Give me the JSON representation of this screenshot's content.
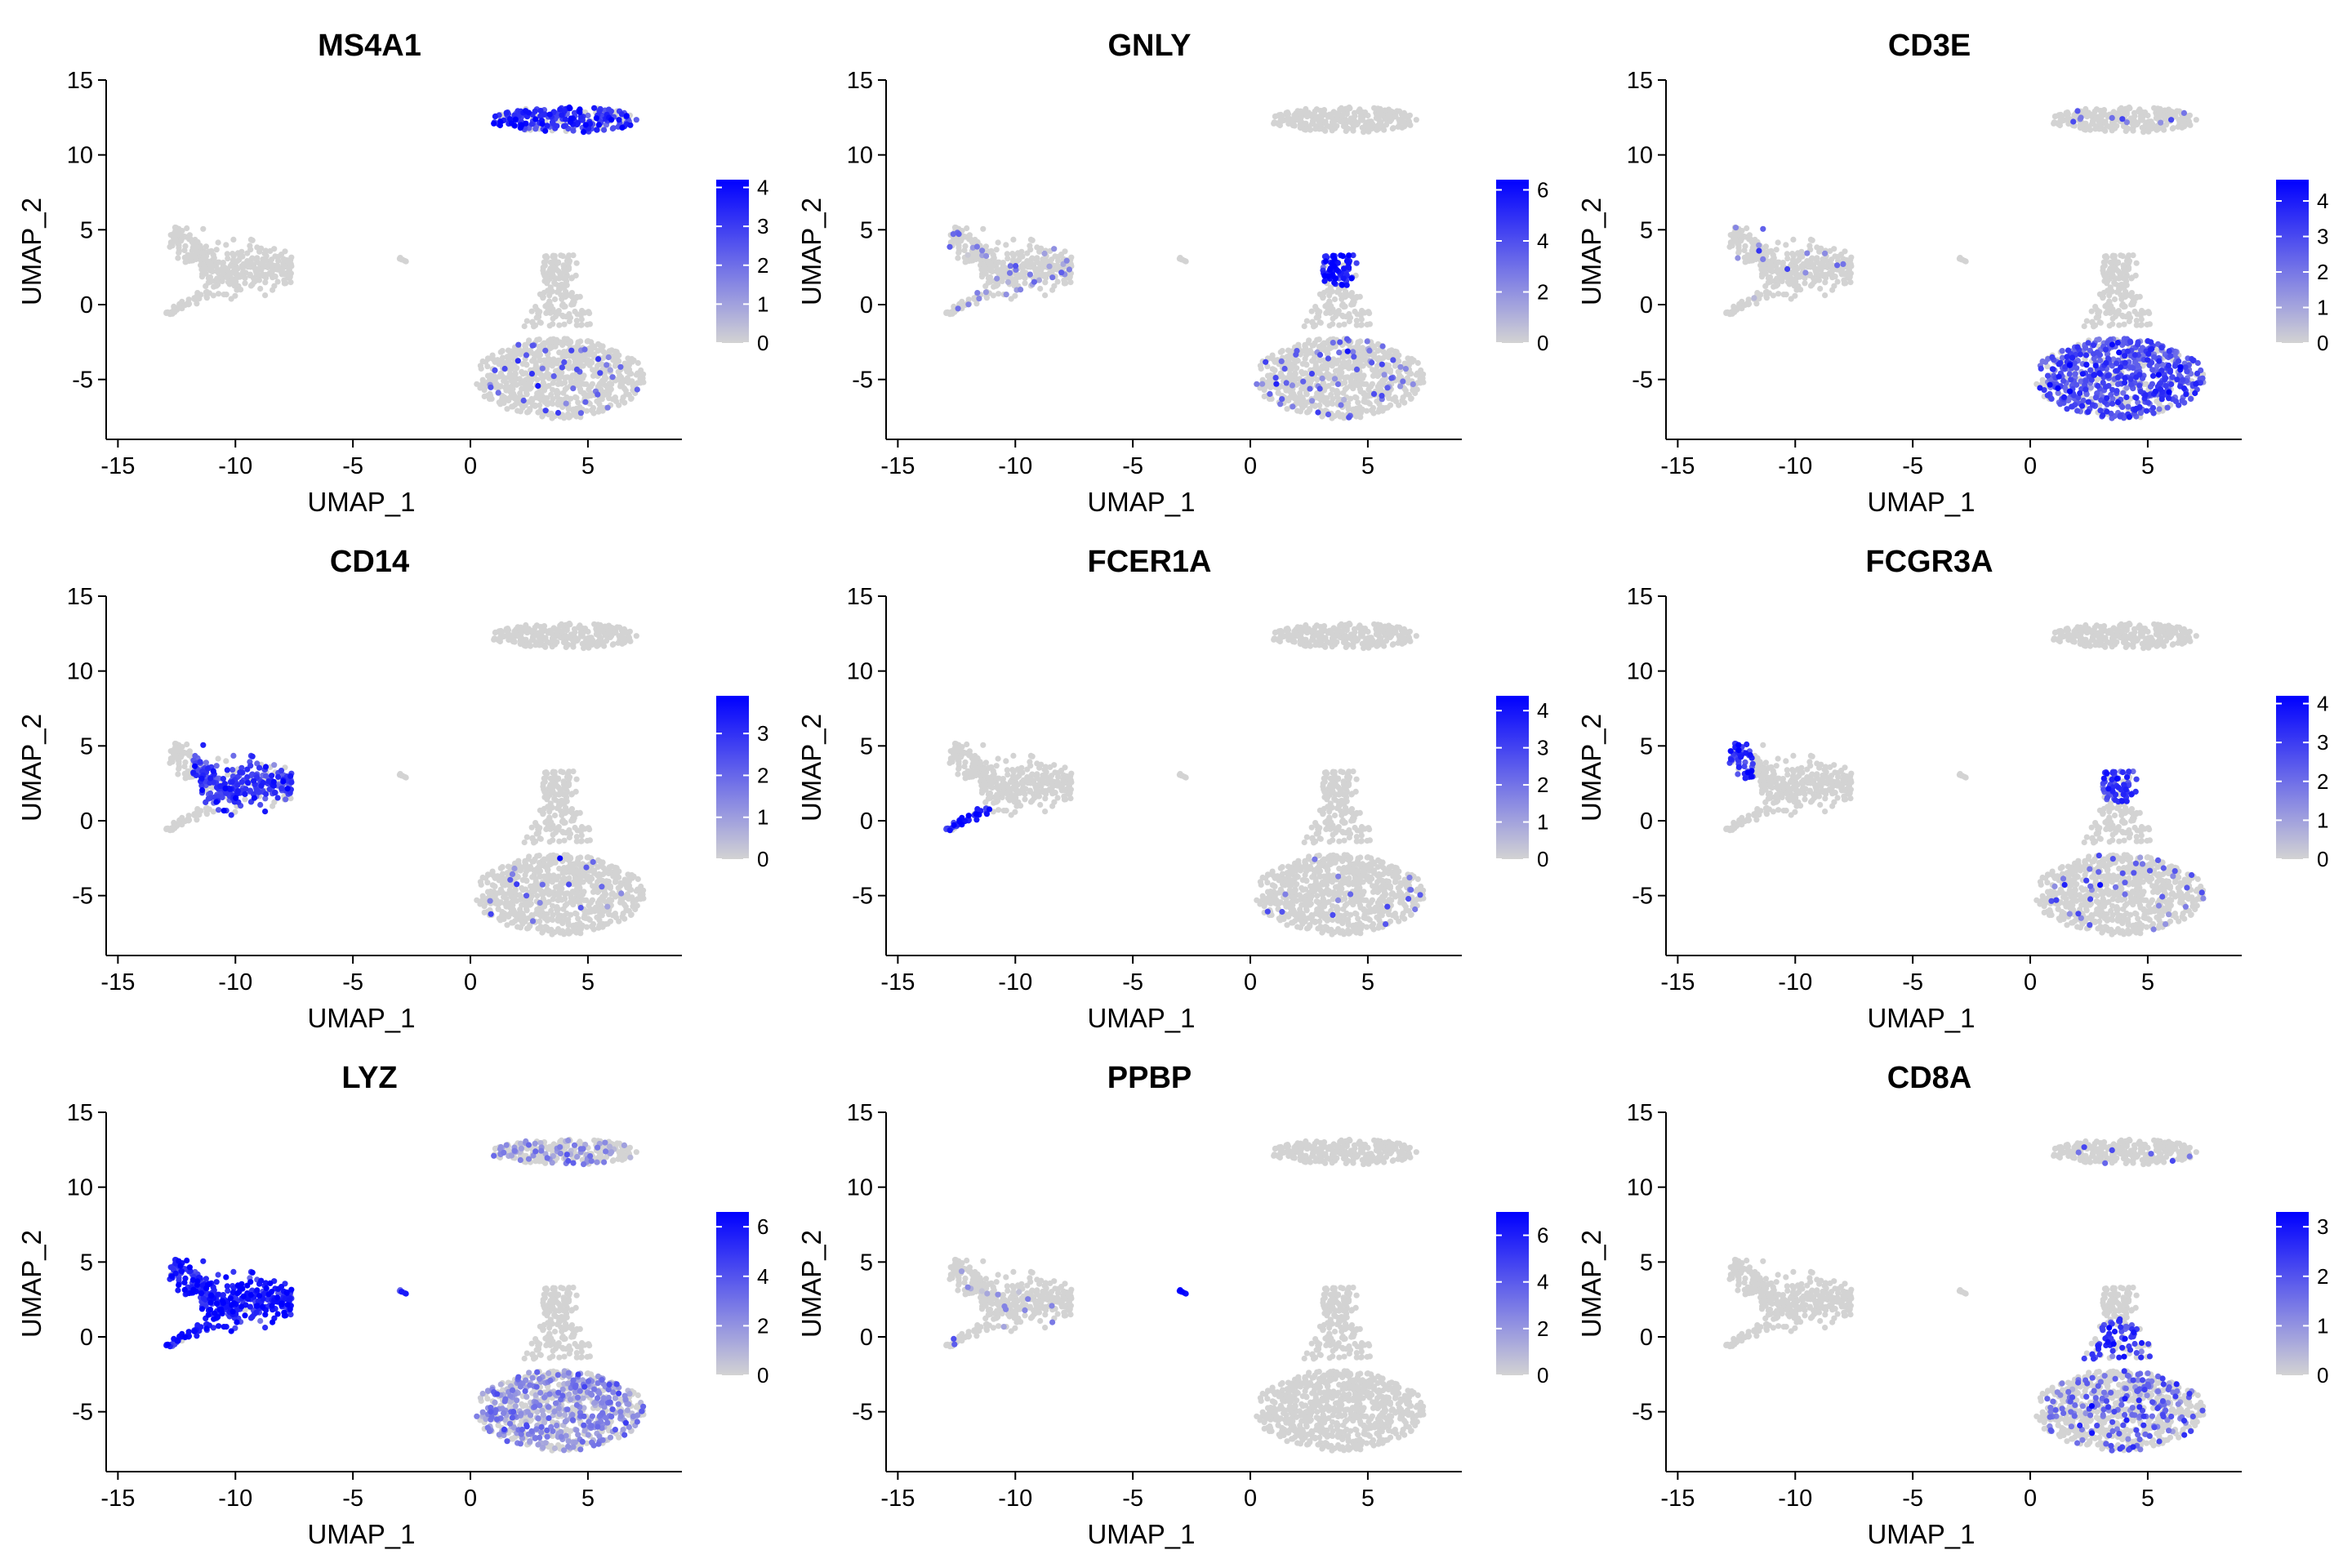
{
  "chart_data": [
    {
      "type": "scatter",
      "title": "MS4A1",
      "xlabel": "UMAP_1",
      "ylabel": "UMAP_2",
      "xlim": [
        -15.5,
        9
      ],
      "ylim": [
        -9,
        15
      ],
      "xticks": [
        -15,
        -10,
        -5,
        0,
        5
      ],
      "yticks": [
        -5,
        0,
        5,
        10,
        15
      ],
      "legend": {
        "position": "right",
        "ticks": [
          0,
          1,
          2,
          3,
          4
        ],
        "max": 4.2,
        "low_color": "#d3d3d3",
        "high_color": "#0000ff"
      },
      "hot_regions": [
        {
          "cluster": "top",
          "frac": 0.75,
          "level": 0.75
        },
        {
          "cluster": "bottom",
          "frac": 0.06,
          "level": 0.55
        }
      ]
    },
    {
      "type": "scatter",
      "title": "GNLY",
      "xlabel": "UMAP_1",
      "ylabel": "UMAP_2",
      "xlim": [
        -15.5,
        9
      ],
      "ylim": [
        -9,
        15
      ],
      "xticks": [
        -15,
        -10,
        -5,
        0,
        5
      ],
      "yticks": [
        -5,
        0,
        5,
        10,
        15
      ],
      "legend": {
        "position": "right",
        "ticks": [
          0,
          2,
          4,
          6
        ],
        "max": 6.4,
        "low_color": "#d3d3d3",
        "high_color": "#0000ff"
      },
      "hot_regions": [
        {
          "cluster": "bottom-top",
          "frac": 0.95,
          "level": 0.85
        },
        {
          "cluster": "bottom",
          "frac": 0.1,
          "level": 0.45
        },
        {
          "cluster": "left",
          "frac": 0.12,
          "level": 0.35
        }
      ]
    },
    {
      "type": "scatter",
      "title": "CD3E",
      "xlabel": "UMAP_1",
      "ylabel": "UMAP_2",
      "xlim": [
        -15.5,
        9
      ],
      "ylim": [
        -9,
        15
      ],
      "xticks": [
        -15,
        -10,
        -5,
        0,
        5
      ],
      "yticks": [
        -5,
        0,
        5,
        10,
        15
      ],
      "legend": {
        "position": "right",
        "ticks": [
          0,
          1,
          2,
          3,
          4
        ],
        "max": 4.6,
        "low_color": "#d3d3d3",
        "high_color": "#0000ff"
      },
      "hot_regions": [
        {
          "cluster": "bottom",
          "frac": 0.75,
          "level": 0.6
        },
        {
          "cluster": "left",
          "frac": 0.05,
          "level": 0.4
        },
        {
          "cluster": "top",
          "frac": 0.05,
          "level": 0.4
        }
      ]
    },
    {
      "type": "scatter",
      "title": "CD14",
      "xlabel": "UMAP_1",
      "ylabel": "UMAP_2",
      "xlim": [
        -15.5,
        9
      ],
      "ylim": [
        -9,
        15
      ],
      "xticks": [
        -15,
        -10,
        -5,
        0,
        5
      ],
      "yticks": [
        -5,
        0,
        5,
        10,
        15
      ],
      "legend": {
        "position": "right",
        "ticks": [
          0,
          1,
          2,
          3
        ],
        "max": 3.9,
        "low_color": "#d3d3d3",
        "high_color": "#0000ff"
      },
      "hot_regions": [
        {
          "cluster": "left-body",
          "frac": 0.8,
          "level": 0.7
        },
        {
          "cluster": "bottom",
          "frac": 0.03,
          "level": 0.5
        }
      ]
    },
    {
      "type": "scatter",
      "title": "FCER1A",
      "xlabel": "UMAP_1",
      "ylabel": "UMAP_2",
      "xlim": [
        -15.5,
        9
      ],
      "ylim": [
        -9,
        15
      ],
      "xticks": [
        -15,
        -10,
        -5,
        0,
        5
      ],
      "yticks": [
        -5,
        0,
        5,
        10,
        15
      ],
      "legend": {
        "position": "right",
        "ticks": [
          0,
          1,
          2,
          3,
          4
        ],
        "max": 4.4,
        "low_color": "#d3d3d3",
        "high_color": "#0000ff"
      },
      "hot_regions": [
        {
          "cluster": "left-tail",
          "frac": 0.9,
          "level": 0.8
        },
        {
          "cluster": "bottom",
          "frac": 0.02,
          "level": 0.5
        }
      ]
    },
    {
      "type": "scatter",
      "title": "FCGR3A",
      "xlabel": "UMAP_1",
      "ylabel": "UMAP_2",
      "xlim": [
        -15.5,
        9
      ],
      "ylim": [
        -9,
        15
      ],
      "xticks": [
        -15,
        -10,
        -5,
        0,
        5
      ],
      "yticks": [
        -5,
        0,
        5,
        10,
        15
      ],
      "legend": {
        "position": "right",
        "ticks": [
          0,
          1,
          2,
          3,
          4
        ],
        "max": 4.2,
        "low_color": "#d3d3d3",
        "high_color": "#0000ff"
      },
      "hot_regions": [
        {
          "cluster": "left-tip",
          "frac": 0.9,
          "level": 0.8
        },
        {
          "cluster": "bottom-top",
          "frac": 0.85,
          "level": 0.75
        },
        {
          "cluster": "bottom",
          "frac": 0.05,
          "level": 0.5
        }
      ]
    },
    {
      "type": "scatter",
      "title": "LYZ",
      "xlabel": "UMAP_1",
      "ylabel": "UMAP_2",
      "xlim": [
        -15.5,
        9
      ],
      "ylim": [
        -9,
        15
      ],
      "xticks": [
        -15,
        -10,
        -5,
        0,
        5
      ],
      "yticks": [
        -5,
        0,
        5,
        10,
        15
      ],
      "legend": {
        "position": "right",
        "ticks": [
          0,
          2,
          4,
          6
        ],
        "max": 6.6,
        "low_color": "#d3d3d3",
        "high_color": "#0000ff"
      },
      "hot_regions": [
        {
          "cluster": "left",
          "frac": 0.97,
          "level": 0.85
        },
        {
          "cluster": "dot",
          "frac": 1.0,
          "level": 0.7
        },
        {
          "cluster": "bottom",
          "frac": 0.55,
          "level": 0.3
        },
        {
          "cluster": "top",
          "frac": 0.35,
          "level": 0.3
        }
      ]
    },
    {
      "type": "scatter",
      "title": "PPBP",
      "xlabel": "UMAP_1",
      "ylabel": "UMAP_2",
      "xlim": [
        -15.5,
        9
      ],
      "ylim": [
        -9,
        15
      ],
      "xticks": [
        -15,
        -10,
        -5,
        0,
        5
      ],
      "yticks": [
        -5,
        0,
        5,
        10,
        15
      ],
      "legend": {
        "position": "right",
        "ticks": [
          0,
          2,
          4,
          6
        ],
        "max": 7.0,
        "low_color": "#d3d3d3",
        "high_color": "#0000ff"
      },
      "hot_regions": [
        {
          "cluster": "dot",
          "frac": 1.0,
          "level": 0.9
        },
        {
          "cluster": "left",
          "frac": 0.03,
          "level": 0.3
        }
      ]
    },
    {
      "type": "scatter",
      "title": "CD8A",
      "xlabel": "UMAP_1",
      "ylabel": "UMAP_2",
      "xlim": [
        -15.5,
        9
      ],
      "ylim": [
        -9,
        15
      ],
      "xticks": [
        -15,
        -10,
        -5,
        0,
        5
      ],
      "yticks": [
        -5,
        0,
        5,
        10,
        15
      ],
      "legend": {
        "position": "right",
        "ticks": [
          0,
          1,
          2,
          3
        ],
        "max": 3.3,
        "low_color": "#d3d3d3",
        "high_color": "#0000ff"
      },
      "hot_regions": [
        {
          "cluster": "bottom-stem",
          "frac": 0.6,
          "level": 0.7
        },
        {
          "cluster": "bottom",
          "frac": 0.25,
          "level": 0.5
        },
        {
          "cluster": "top",
          "frac": 0.03,
          "level": 0.5
        }
      ]
    }
  ]
}
